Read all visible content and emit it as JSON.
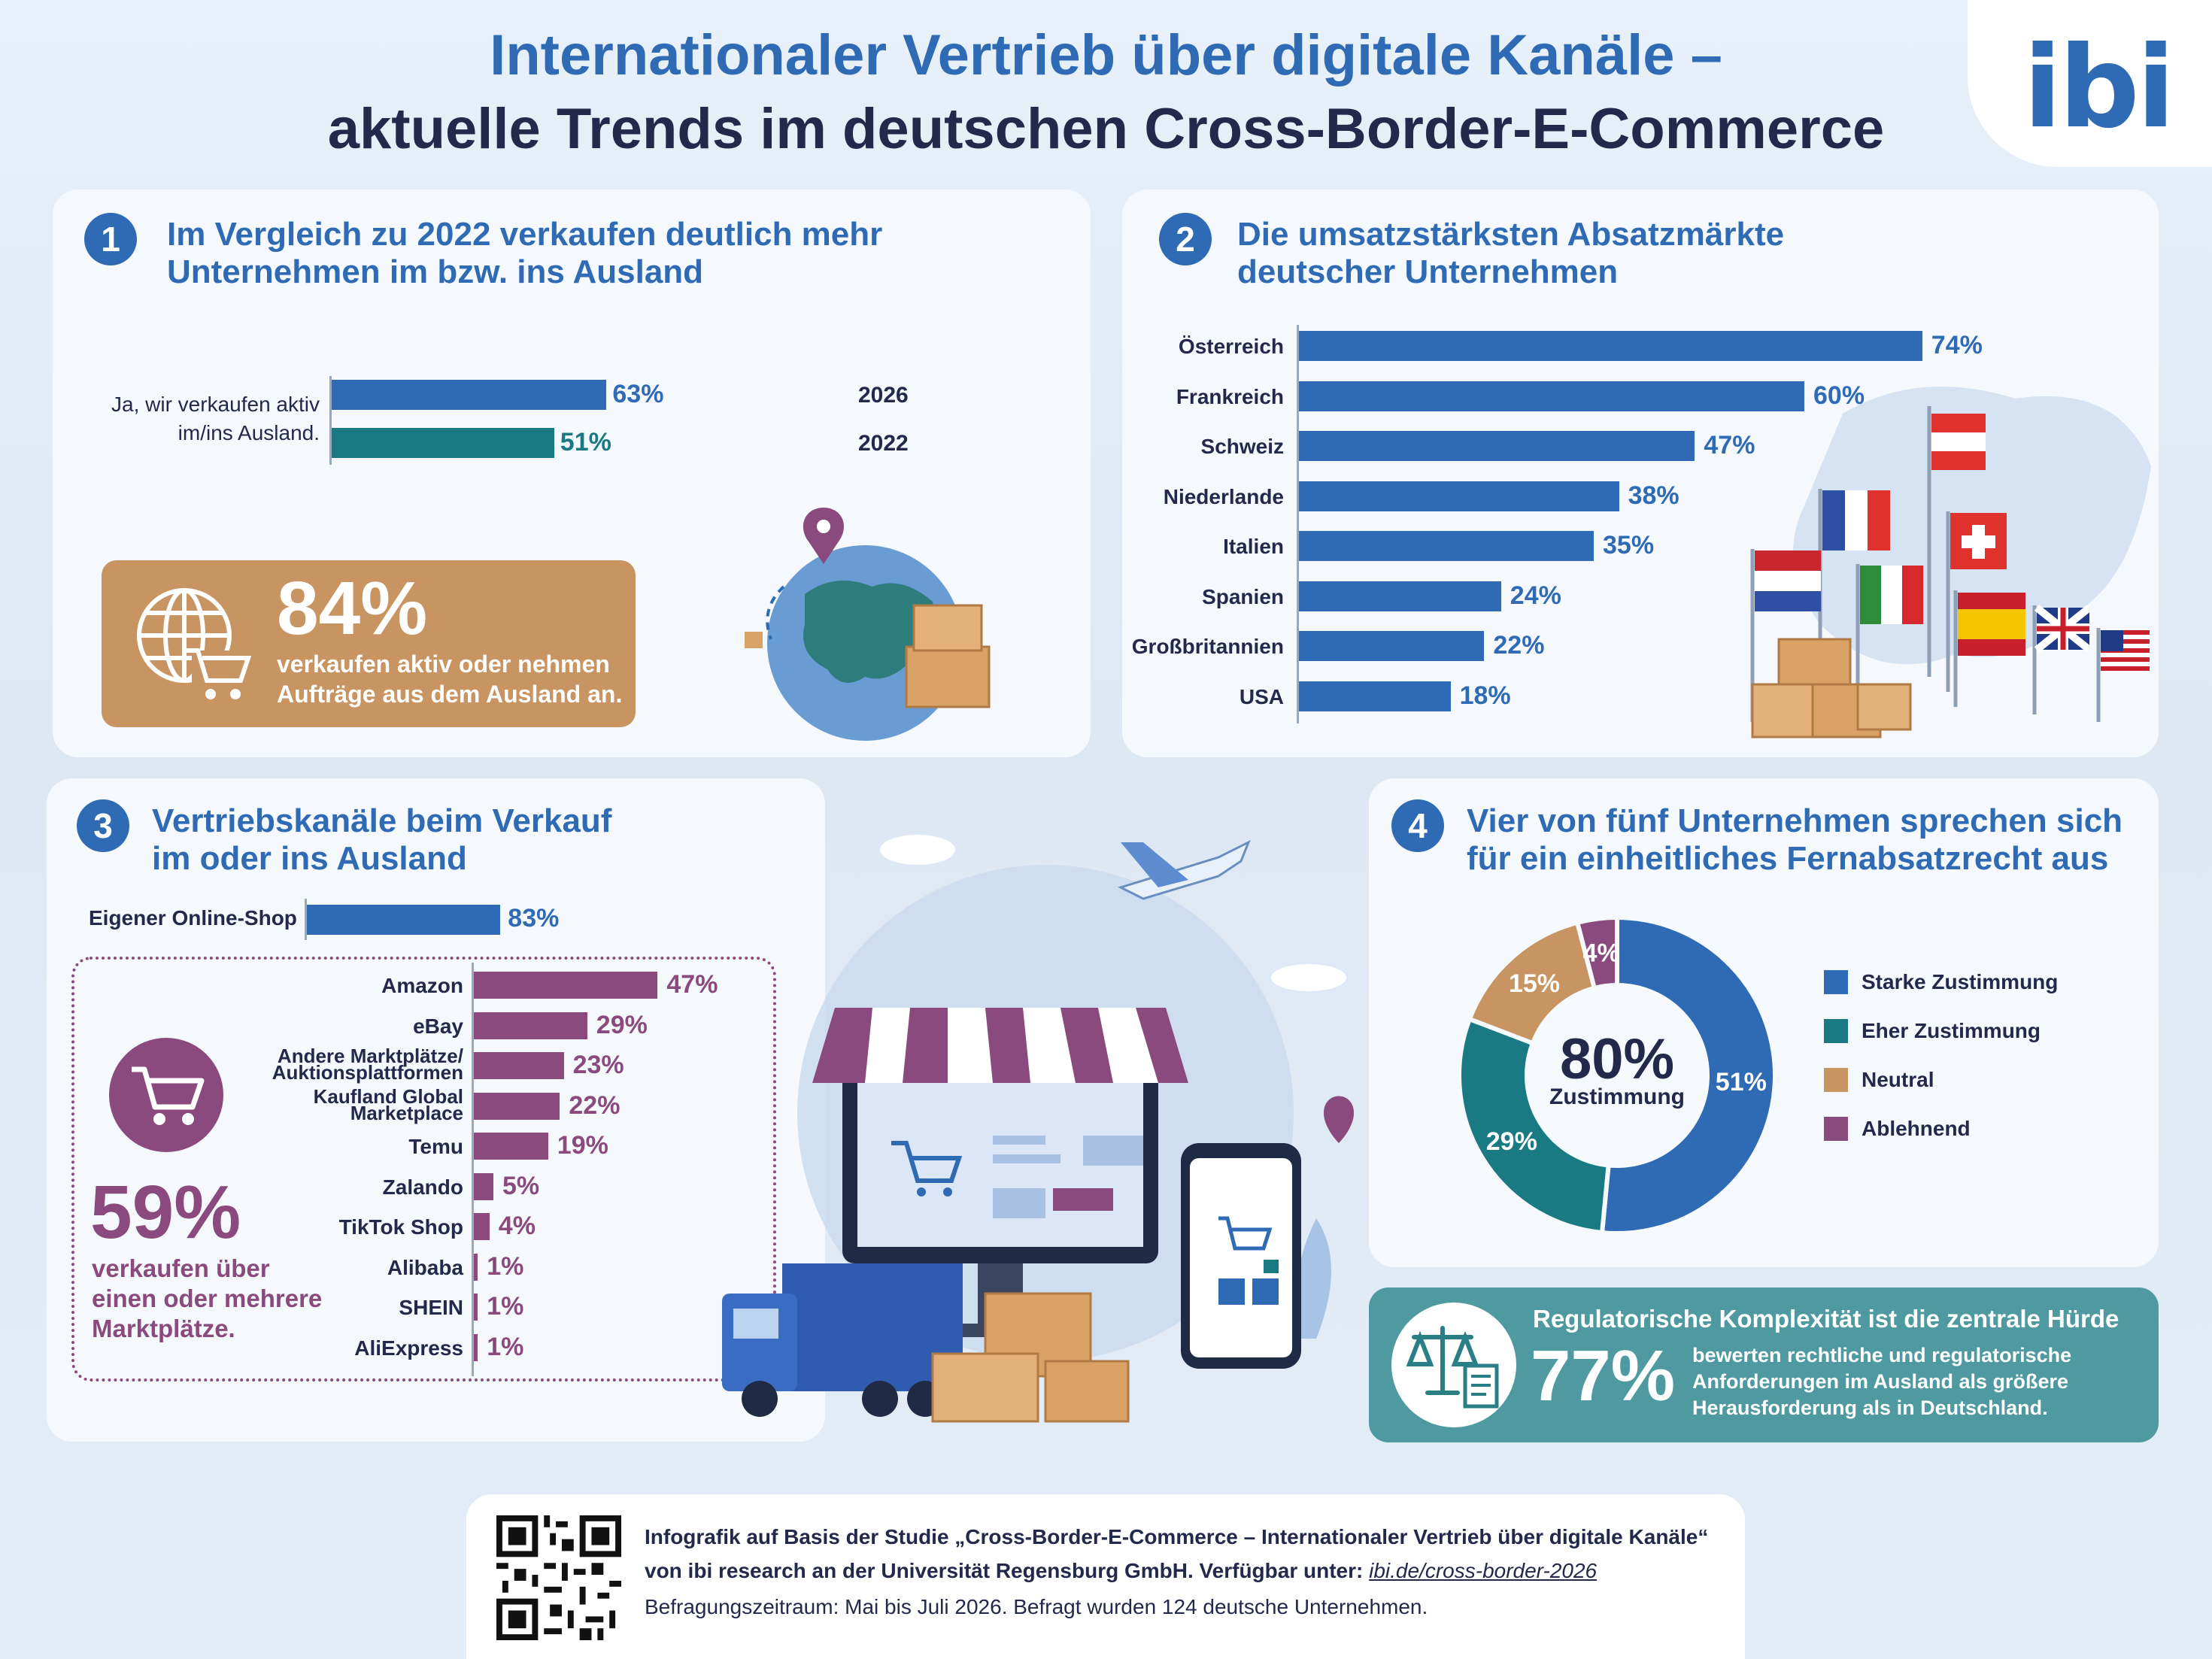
{
  "header": {
    "title_line1": "Internationaler Vertrieb über digitale Kanäle –",
    "title_line2": "aktuelle Trends im deutschen Cross-Border-E-Commerce",
    "logo": "ibi"
  },
  "colors": {
    "blue": "#2f6bb5",
    "teal": "#1a7a84",
    "brown": "#c89462",
    "purple": "#8a4a7e",
    "dark": "#22294a"
  },
  "section1": {
    "number": "1",
    "title_line1": "Im Vergleich zu 2022 verkaufen deutlich mehr",
    "title_line2": "Unternehmen im bzw. ins Ausland",
    "bar_label_line1": "Ja, wir verkaufen aktiv",
    "bar_label_line2": "im/ins Ausland.",
    "callout_value": "84%",
    "callout_text_line1": "verkaufen aktiv oder nehmen",
    "callout_text_line2": "Aufträge aus dem Ausland an.",
    "icon": "globe-cart-icon"
  },
  "section2": {
    "number": "2",
    "title_line1": "Die umsatzstärksten Absatzmärkte",
    "title_line2": "deutscher Unternehmen"
  },
  "section3": {
    "number": "3",
    "title_line1": "Vertriebskanäle beim Verkauf",
    "title_line2": "im oder ins Ausland",
    "marketplace_value": "59%",
    "marketplace_text_line1": "verkaufen über",
    "marketplace_text_line2": "einen oder mehrere",
    "marketplace_text_line3": "Marktplätze.",
    "icon": "shopping-cart-icon"
  },
  "section4": {
    "number": "4",
    "title_line1": "Vier von fünf Unternehmen sprechen sich",
    "title_line2": "für ein einheitliches Fernabsatzrecht aus",
    "center_value": "80%",
    "center_label": "Zustimmung"
  },
  "regulatory": {
    "heading": "Regulatorische Komplexität ist die zentrale Hürde",
    "value": "77%",
    "text_line1": "bewerten rechtliche und regulatorische",
    "text_line2": "Anforderungen im Ausland als größere",
    "text_line3": "Herausforderung als in Deutschland.",
    "icon": "scales-document-icon"
  },
  "footer": {
    "line1": "Infografik auf Basis der Studie „Cross-Border-E-Commerce – Internationaler Vertrieb über digitale Kanäle“",
    "line2_prefix": "von ibi research an der Universität Regensburg GmbH. Verfügbar unter: ",
    "link": "ibi.de/cross-border-2026",
    "line3": "Befragungszeitraum: Mai bis Juli 2026. Befragt wurden 124 deutsche Unternehmen.",
    "qr_icon": "qr-code-icon"
  },
  "chart_data": [
    {
      "id": "section1",
      "type": "bar",
      "orientation": "horizontal",
      "categories": [
        "2026",
        "2022"
      ],
      "values": [
        63,
        51
      ],
      "value_labels": [
        "63%",
        "51%"
      ],
      "colors": [
        "#2f6bb5",
        "#1a7a84"
      ],
      "unit": "%"
    },
    {
      "id": "section2",
      "type": "bar",
      "orientation": "horizontal",
      "categories": [
        "Österreich",
        "Frankreich",
        "Schweiz",
        "Niederlande",
        "Italien",
        "Spanien",
        "Großbritannien",
        "USA"
      ],
      "values": [
        74,
        60,
        47,
        38,
        35,
        24,
        22,
        18
      ],
      "value_labels": [
        "74%",
        "60%",
        "47%",
        "38%",
        "35%",
        "24%",
        "22%",
        "18%"
      ],
      "color": "#2f6bb5",
      "unit": "%"
    },
    {
      "id": "section3_own",
      "type": "bar",
      "orientation": "horizontal",
      "categories": [
        "Eigener Online-Shop"
      ],
      "values": [
        83
      ],
      "value_labels": [
        "83%"
      ],
      "color": "#2f6bb5",
      "unit": "%"
    },
    {
      "id": "section3_marketplaces",
      "type": "bar",
      "orientation": "horizontal",
      "categories": [
        "Amazon",
        "eBay",
        "Andere Marktplätze/\nAuktionsplattformen",
        "Kaufland Global\nMarketplace",
        "Temu",
        "Zalando",
        "TikTok Shop",
        "Alibaba",
        "SHEIN",
        "AliExpress"
      ],
      "values": [
        47,
        29,
        23,
        22,
        19,
        5,
        4,
        1,
        1,
        1
      ],
      "value_labels": [
        "47%",
        "29%",
        "23%",
        "22%",
        "19%",
        "5%",
        "4%",
        "1%",
        "1%",
        "1%"
      ],
      "color": "#8a4a7e",
      "unit": "%"
    },
    {
      "id": "section4",
      "type": "pie",
      "variant": "donut",
      "categories": [
        "Starke Zustimmung",
        "Eher Zustimmung",
        "Neutral",
        "Ablehnend"
      ],
      "values": [
        51,
        29,
        15,
        4
      ],
      "value_labels": [
        "51%",
        "29%",
        "15%",
        "4%"
      ],
      "colors": [
        "#2f6bb5",
        "#1a7a84",
        "#c89462",
        "#8a4a7e"
      ],
      "legend_position": "right"
    }
  ]
}
